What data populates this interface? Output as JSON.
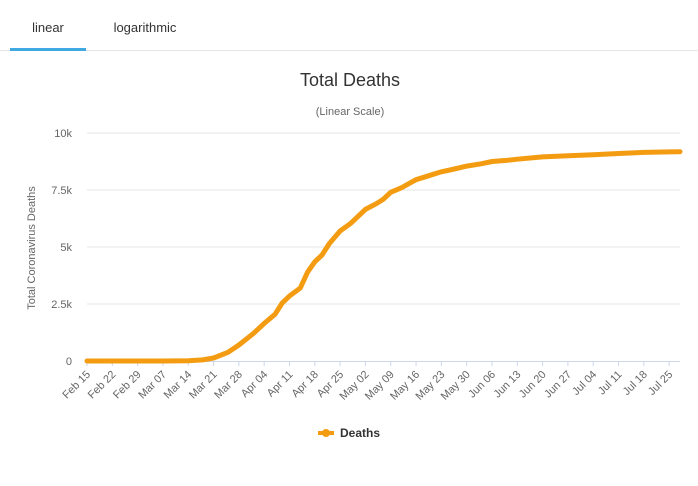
{
  "tabs": [
    {
      "label": "linear",
      "active": true
    },
    {
      "label": "logarithmic",
      "active": false
    }
  ],
  "chart_data": {
    "type": "line",
    "title": "Total Deaths",
    "subtitle": "(Linear Scale)",
    "ylabel": "Total Coronavirus Deaths",
    "xlabel": "",
    "ylim": [
      0,
      10000
    ],
    "yticks": [
      0,
      2500,
      5000,
      7500,
      10000
    ],
    "ytick_labels": [
      "0",
      "2.5k",
      "5k",
      "7.5k",
      "10k"
    ],
    "xtick_labels": [
      "Feb 15",
      "Feb 22",
      "Feb 29",
      "Mar 07",
      "Mar 14",
      "Mar 21",
      "Mar 28",
      "Apr 04",
      "Apr 11",
      "Apr 18",
      "Apr 25",
      "May 02",
      "May 09",
      "May 16",
      "May 23",
      "May 30",
      "Jun 06",
      "Jun 13",
      "Jun 20",
      "Jun 27",
      "Jul 04",
      "Jul 11",
      "Jul 18",
      "Jul 25"
    ],
    "grid": true,
    "legend": "bottom",
    "color": "#f39c12",
    "series": [
      {
        "name": "Deaths",
        "x": [
          "Feb 15",
          "Feb 22",
          "Feb 29",
          "Mar 07",
          "Mar 14",
          "Mar 18",
          "Mar 21",
          "Mar 25",
          "Mar 28",
          "Apr 01",
          "Apr 04",
          "Apr 07",
          "Apr 09",
          "Apr 11",
          "Apr 14",
          "Apr 16",
          "Apr 18",
          "Apr 20",
          "Apr 22",
          "Apr 25",
          "Apr 28",
          "May 02",
          "May 05",
          "May 07",
          "May 09",
          "May 12",
          "May 16",
          "May 20",
          "May 23",
          "May 26",
          "May 30",
          "Jun 03",
          "Jun 06",
          "Jun 10",
          "Jun 13",
          "Jun 20",
          "Jun 27",
          "Jul 04",
          "Jul 11",
          "Jul 18",
          "Jul 25",
          "Jul 28"
        ],
        "values": [
          0,
          0,
          0,
          0,
          10,
          50,
          130,
          380,
          700,
          1200,
          1650,
          2050,
          2550,
          2850,
          3200,
          3900,
          4350,
          4650,
          5150,
          5700,
          6050,
          6650,
          6900,
          7100,
          7400,
          7600,
          7950,
          8150,
          8300,
          8400,
          8550,
          8650,
          8750,
          8800,
          8850,
          8950,
          9000,
          9050,
          9100,
          9150,
          9170,
          9180
        ]
      }
    ]
  }
}
